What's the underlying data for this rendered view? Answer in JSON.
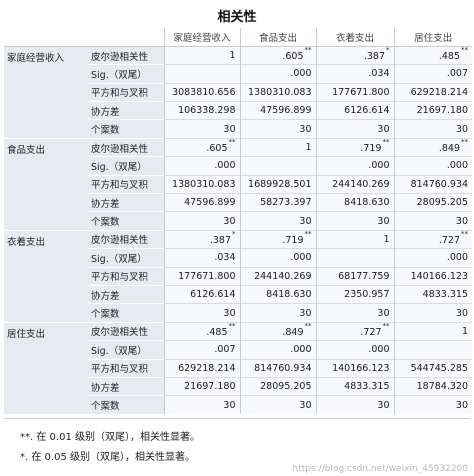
{
  "title": "相关性",
  "columns": [
    "家庭经营收入",
    "食品支出",
    "衣着支出",
    "居住支出"
  ],
  "stat_labels": [
    "皮尔逊相关性",
    "Sig.（双尾）",
    "平方和与叉积",
    "协方差",
    "个案数"
  ],
  "rows": [
    {
      "var": "家庭经营收入",
      "cells": [
        [
          "1",
          ".605**",
          ".387*",
          ".485**"
        ],
        [
          "",
          ".000",
          ".034",
          ".007"
        ],
        [
          "3083810.656",
          "1380310.083",
          "177671.800",
          "629218.214"
        ],
        [
          "106338.298",
          "47596.899",
          "6126.614",
          "21697.180"
        ],
        [
          "30",
          "30",
          "30",
          "30"
        ]
      ]
    },
    {
      "var": "食品支出",
      "cells": [
        [
          ".605**",
          "1",
          ".719**",
          ".849**"
        ],
        [
          ".000",
          "",
          ".000",
          ".000"
        ],
        [
          "1380310.083",
          "1689928.501",
          "244140.269",
          "814760.934"
        ],
        [
          "47596.899",
          "58273.397",
          "8418.630",
          "28095.205"
        ],
        [
          "30",
          "30",
          "30",
          "30"
        ]
      ]
    },
    {
      "var": "衣着支出",
      "cells": [
        [
          ".387*",
          ".719**",
          "1",
          ".727**"
        ],
        [
          ".034",
          ".000",
          "",
          ".000"
        ],
        [
          "177671.800",
          "244140.269",
          "68177.759",
          "140166.123"
        ],
        [
          "6126.614",
          "8418.630",
          "2350.957",
          "4833.315"
        ],
        [
          "30",
          "30",
          "30",
          "30"
        ]
      ]
    },
    {
      "var": "居住支出",
      "cells": [
        [
          ".485**",
          ".849**",
          ".727**",
          "1"
        ],
        [
          ".007",
          ".000",
          ".000",
          ""
        ],
        [
          "629218.214",
          "814760.934",
          "140166.123",
          "544745.285"
        ],
        [
          "21697.180",
          "28095.205",
          "4833.315",
          "18784.320"
        ],
        [
          "30",
          "30",
          "30",
          "30"
        ]
      ]
    }
  ],
  "footnotes": [
    "**. 在 0.01 级别（双尾），相关性显著。",
    "*. 在 0.05 级别（双尾），相关性显著。"
  ],
  "watermark": "https://blog.csdn.net/weixin_45932200"
}
